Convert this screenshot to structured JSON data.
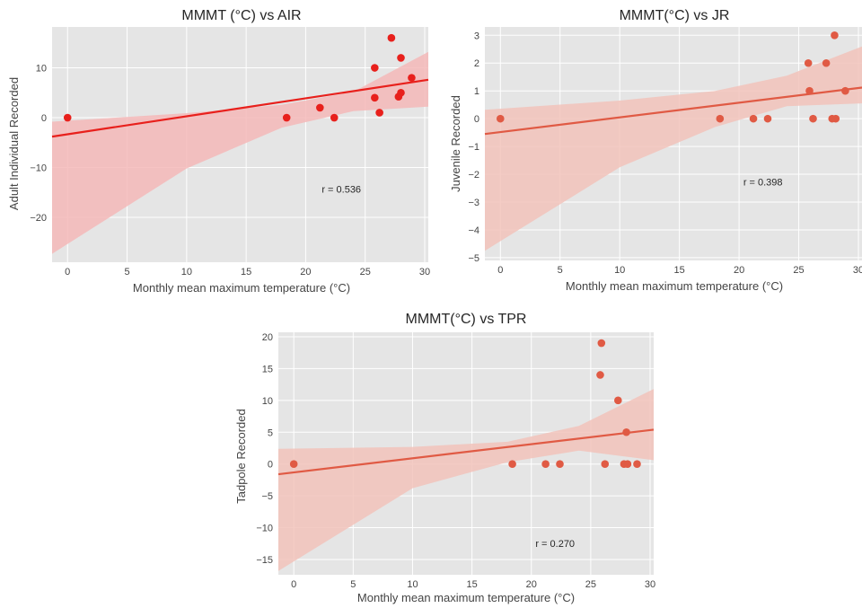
{
  "chart_data": [
    {
      "type": "scatter",
      "title": "MMMT (°C) vs AIR",
      "xlabel": "Monthly mean maximum temperature (°C)",
      "ylabel": "Adult Individual Recorded",
      "xlim": [
        -1.3,
        30.3
      ],
      "ylim": [
        -29,
        18.2
      ],
      "xticks": [
        0,
        5,
        10,
        15,
        20,
        25,
        30
      ],
      "yticks": [
        -20,
        -10,
        0,
        10
      ],
      "grid": true,
      "point_color": "#e8201c",
      "line_color": "#e8201c",
      "band_color": "#f4b9b9",
      "points": [
        [
          0,
          0
        ],
        [
          18.4,
          0
        ],
        [
          21.2,
          2
        ],
        [
          22.4,
          0
        ],
        [
          25.8,
          4
        ],
        [
          25.8,
          10
        ],
        [
          26.2,
          1
        ],
        [
          27.2,
          16
        ],
        [
          27.8,
          4.2
        ],
        [
          28.0,
          5
        ],
        [
          28.0,
          12
        ],
        [
          28.9,
          8
        ]
      ],
      "fit": [
        [
          -1.3,
          -3.8
        ],
        [
          30.3,
          7.6
        ]
      ],
      "band_upper": [
        [
          -1.3,
          -0.8
        ],
        [
          10,
          0.9
        ],
        [
          18,
          2.6
        ],
        [
          24,
          5.2
        ],
        [
          30.3,
          13.2
        ]
      ],
      "band_lower": [
        [
          -1.3,
          -27.3
        ],
        [
          10,
          -10.2
        ],
        [
          18,
          -2.0
        ],
        [
          24,
          1.3
        ],
        [
          30.3,
          2.2
        ]
      ],
      "annotation": {
        "text": "r = 0.536",
        "x": 23,
        "y": -15
      }
    },
    {
      "type": "scatter",
      "title": "MMMT(°C) vs JR",
      "xlabel": "Monthly mean maximum temperature (°C)",
      "ylabel": "Juvenile Recorded",
      "xlim": [
        -1.3,
        30.3
      ],
      "ylim": [
        -5.1,
        3.3
      ],
      "xticks": [
        0,
        5,
        10,
        15,
        20,
        25,
        30
      ],
      "yticks": [
        -5,
        -4,
        -3,
        -2,
        -1,
        0,
        1,
        2,
        3
      ],
      "grid": true,
      "point_color": "#e05a44",
      "line_color": "#e05a44",
      "band_color": "#f2c3bb",
      "points": [
        [
          0,
          0
        ],
        [
          18.4,
          0
        ],
        [
          21.2,
          0
        ],
        [
          22.4,
          0
        ],
        [
          25.8,
          2
        ],
        [
          25.9,
          1
        ],
        [
          26.2,
          0
        ],
        [
          27.3,
          2
        ],
        [
          27.8,
          0
        ],
        [
          28.0,
          3
        ],
        [
          28.1,
          0
        ],
        [
          28.9,
          1
        ]
      ],
      "fit": [
        [
          -1.3,
          -0.55
        ],
        [
          30.3,
          1.12
        ]
      ],
      "band_upper": [
        [
          -1.3,
          0.32
        ],
        [
          10,
          0.65
        ],
        [
          18,
          1.0
        ],
        [
          24,
          1.55
        ],
        [
          30.3,
          2.6
        ]
      ],
      "band_lower": [
        [
          -1.3,
          -4.75
        ],
        [
          10,
          -1.75
        ],
        [
          18,
          -0.3
        ],
        [
          24,
          0.45
        ],
        [
          30.3,
          0.55
        ]
      ],
      "annotation": {
        "text": "r = 0.398",
        "x": 22,
        "y": -2.4
      }
    },
    {
      "type": "scatter",
      "title": "MMMT(°C) vs TPR",
      "xlabel": "Monthly mean maximum temperature (°C)",
      "ylabel": "Tadpole Recorded",
      "xlim": [
        -1.3,
        30.3
      ],
      "ylim": [
        -17.4,
        20.7
      ],
      "xticks": [
        0,
        5,
        10,
        15,
        20,
        25,
        30
      ],
      "yticks": [
        -15,
        -10,
        -5,
        0,
        5,
        10,
        15,
        20
      ],
      "grid": true,
      "point_color": "#e05a44",
      "line_color": "#e05a44",
      "band_color": "#f2c3bb",
      "points": [
        [
          0,
          0
        ],
        [
          18.4,
          0
        ],
        [
          21.2,
          0
        ],
        [
          22.4,
          0
        ],
        [
          25.8,
          14
        ],
        [
          25.9,
          19
        ],
        [
          26.2,
          0
        ],
        [
          27.3,
          10
        ],
        [
          27.8,
          0
        ],
        [
          28.0,
          5
        ],
        [
          28.1,
          0
        ],
        [
          28.9,
          0
        ]
      ],
      "fit": [
        [
          -1.3,
          -1.6
        ],
        [
          30.3,
          5.4
        ]
      ],
      "band_upper": [
        [
          -1.3,
          2.4
        ],
        [
          10,
          2.7
        ],
        [
          18,
          3.5
        ],
        [
          24,
          6.0
        ],
        [
          30.3,
          11.8
        ]
      ],
      "band_lower": [
        [
          -1.3,
          -16.8
        ],
        [
          10,
          -3.8
        ],
        [
          18,
          0.3
        ],
        [
          24,
          2.1
        ],
        [
          30.3,
          0.6
        ]
      ],
      "annotation": {
        "text": "r = 0.270",
        "x": 22,
        "y": -13
      }
    }
  ]
}
